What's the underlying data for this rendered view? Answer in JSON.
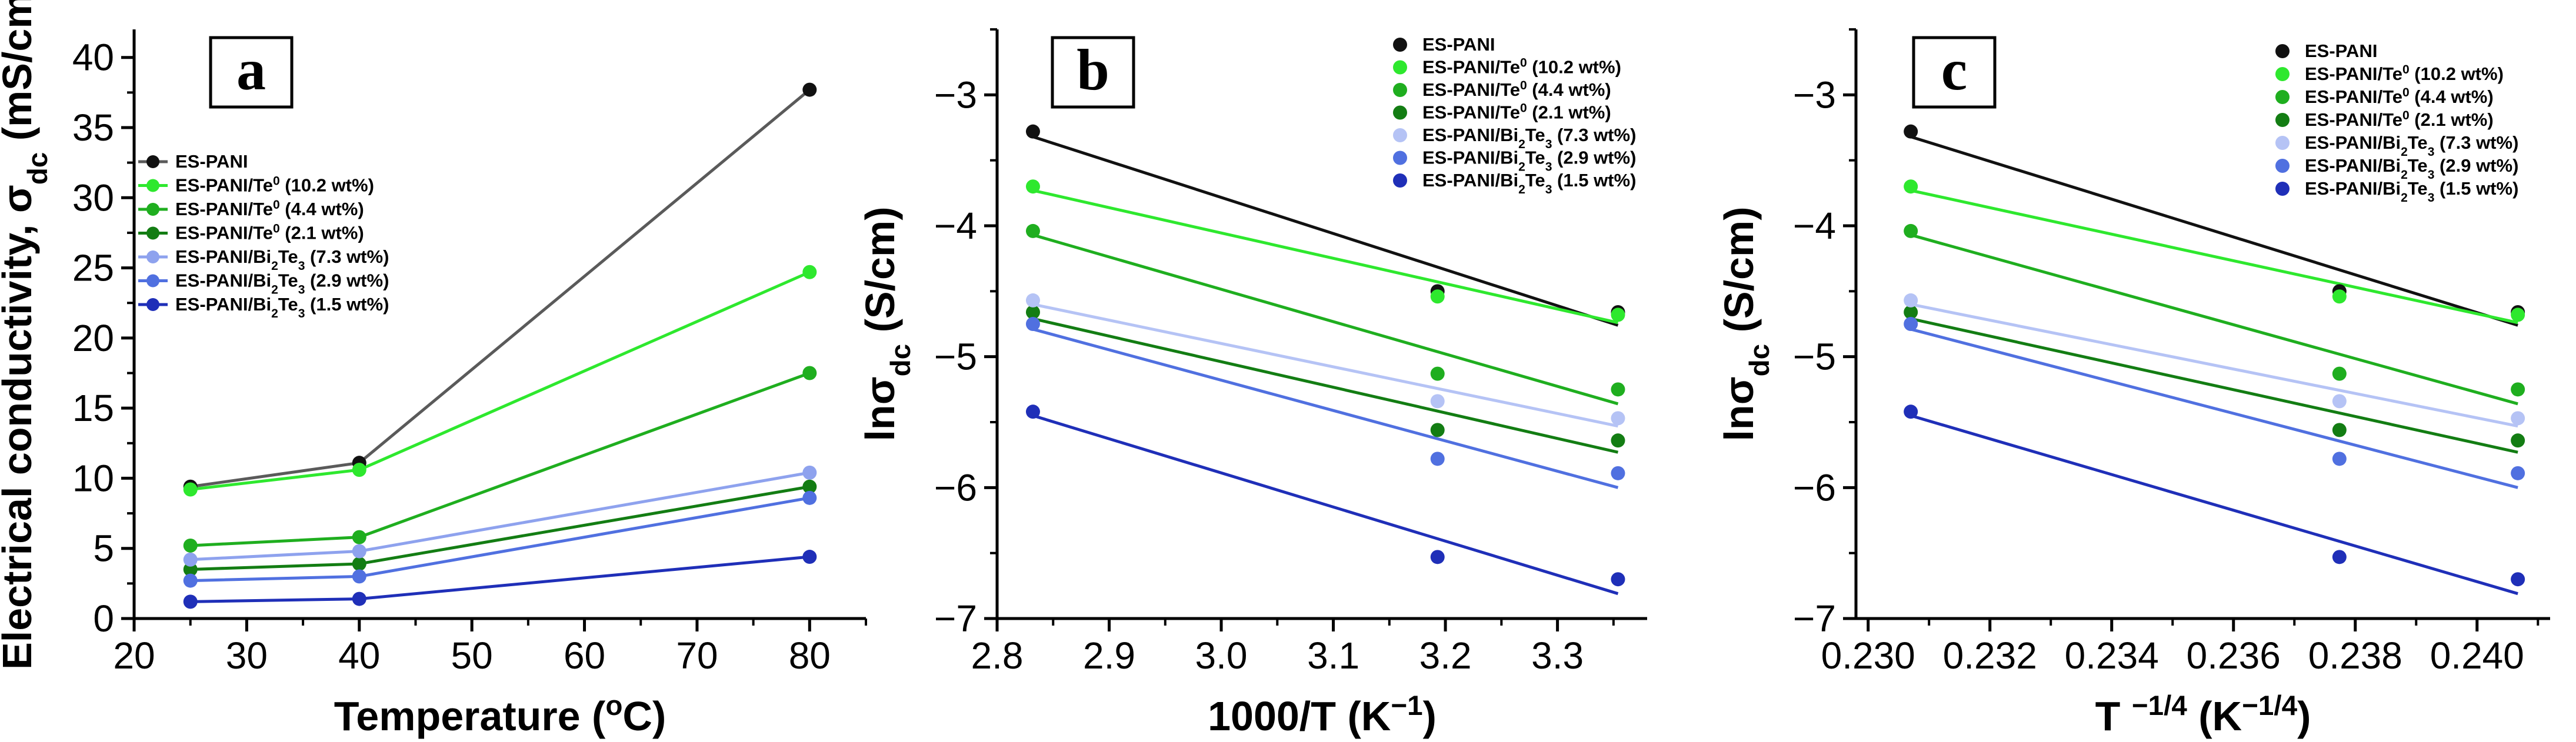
{
  "figure": {
    "panels": [
      {
        "id": "a",
        "label": "a",
        "title": "",
        "xlabel": "Temperature (oC)",
        "ylabel": "Electrical conductivity, σdc (mS/cm)",
        "x_ticks": [
          "20",
          "30",
          "40",
          "50",
          "60",
          "70",
          "80"
        ],
        "y_ticks": [
          "0",
          "5",
          "10",
          "15",
          "20",
          "25",
          "30",
          "35",
          "40"
        ]
      },
      {
        "id": "b",
        "label": "b",
        "title": "",
        "xlabel": "1000/T (K−1)",
        "ylabel": "lnσdc (S/cm)",
        "x_ticks": [
          "2.8",
          "2.9",
          "3.0",
          "3.1",
          "3.2",
          "3.3"
        ],
        "y_ticks": [
          "−3",
          "−4",
          "−5",
          "−6",
          "−7"
        ]
      },
      {
        "id": "c",
        "label": "c",
        "title": "",
        "xlabel": "T −1/4 (K−1/4)",
        "ylabel": "lnσdc (S/cm)",
        "x_ticks": [
          "0.230",
          "0.232",
          "0.234",
          "0.236",
          "0.238",
          "0.240"
        ],
        "y_ticks": [
          "−3",
          "−4",
          "−5",
          "−6",
          "−7"
        ]
      }
    ]
  },
  "chart_data": [
    {
      "type": "line",
      "panel": "a",
      "title": "",
      "xlabel": "Temperature (oC)",
      "ylabel": "Electrical conductivity, σdc (mS/cm)",
      "xlim": [
        20,
        85
      ],
      "ylim": [
        0,
        42
      ],
      "grid": false,
      "legend": "upper-left",
      "x": [
        25,
        40,
        80
      ],
      "series": [
        {
          "name": "ES-PANI",
          "legend_text": "ES-PANI",
          "color": "#5a5a5a",
          "marker_color": "#111111",
          "values": [
            9.4,
            11.1,
            37.7
          ]
        },
        {
          "name": "ES-PANI/Te0 (10.2 wt%)",
          "legend_text": "ES-PANI/Te0 (10.2 wt%)",
          "color": "#2ee82e",
          "marker_color": "#2ee82e",
          "values": [
            9.2,
            10.6,
            24.7
          ]
        },
        {
          "name": "ES-PANI/Te0 (4.4 wt%)",
          "legend_text": "ES-PANI/Te0 (4.4 wt%)",
          "color": "#1fae1f",
          "marker_color": "#1fae1f",
          "values": [
            5.2,
            5.8,
            17.5
          ]
        },
        {
          "name": "ES-PANI/Te0 (2.1 wt%)",
          "legend_text": "ES-PANI/Te0 (2.1 wt%)",
          "color": "#137d13",
          "marker_color": "#137d13",
          "values": [
            3.5,
            3.9,
            9.4
          ]
        },
        {
          "name": "ES-PANI/Bi2Te3 (7.3 wt%)",
          "legend_text": "ES-PANI/Bi2Te3 (7.3 wt%)",
          "color": "#8ea2ee",
          "marker_color": "#8ea2ee",
          "values": [
            4.2,
            4.8,
            10.4
          ]
        },
        {
          "name": "ES-PANI/Bi2Te3 (2.9 wt%)",
          "legend_text": "ES-PANI/Bi2Te3 (2.9 wt%)",
          "color": "#5070e0",
          "marker_color": "#5070e0",
          "values": [
            2.7,
            3.0,
            8.6
          ]
        },
        {
          "name": "ES-PANI/Bi2Te3 (1.5 wt%)",
          "legend_text": "ES-PANI/Bi2Te3 (1.5 wt%)",
          "color": "#1f2fb8",
          "marker_color": "#1f2fb8",
          "values": [
            1.2,
            1.4,
            4.4
          ]
        }
      ]
    },
    {
      "type": "scatter",
      "panel": "b",
      "title": "",
      "xlabel": "1000/T (K−1)",
      "ylabel": "lnσdc (S/cm)",
      "xlim": [
        2.8,
        3.38
      ],
      "ylim": [
        -7,
        -2.5
      ],
      "grid": false,
      "legend": "top-right",
      "fit_lines": true,
      "x": [
        2.832,
        3.193,
        3.354
      ],
      "series": [
        {
          "name": "ES-PANI",
          "legend_text": "ES-PANI",
          "color": "#111111",
          "values": [
            -3.28,
            -4.5,
            -4.66
          ],
          "fit": [
            -3.32,
            -4.76
          ]
        },
        {
          "name": "ES-PANI/Te0 (10.2 wt%)",
          "legend_text": "ES-PANI/Te0 (10.2 wt%)",
          "color": "#2ee82e",
          "values": [
            -3.7,
            -4.54,
            -4.68
          ],
          "fit": [
            -3.73,
            -4.74
          ]
        },
        {
          "name": "ES-PANI/Te0 (4.4 wt%)",
          "legend_text": "ES-PANI/Te0 (4.4 wt%)",
          "color": "#1fae1f",
          "values": [
            -4.04,
            -5.13,
            -5.25
          ],
          "fit": [
            -4.07,
            -5.36
          ]
        },
        {
          "name": "ES-PANI/Te0 (2.1 wt%)",
          "legend_text": "ES-PANI/Te0 (2.1 wt%)",
          "color": "#137d13",
          "values": [
            -4.66,
            -5.56,
            -5.64
          ],
          "fit": [
            -4.71,
            -5.73
          ]
        },
        {
          "name": "ES-PANI/Bi2Te3 (7.3 wt%)",
          "legend_text": "ES-PANI/Bi2Te3 (7.3 wt%)",
          "color": "#b5c3f5",
          "values": [
            -4.57,
            -5.34,
            -5.47
          ],
          "fit": [
            -4.6,
            -5.53
          ]
        },
        {
          "name": "ES-PANI/Bi2Te3 (2.9 wt%)",
          "legend_text": "ES-PANI/Bi2Te3 (2.9 wt%)",
          "color": "#5070e0",
          "values": [
            -4.75,
            -5.78,
            -5.89
          ],
          "fit": [
            -4.79,
            -6.0
          ]
        },
        {
          "name": "ES-PANI/Bi2Te3 (1.5 wt%)",
          "legend_text": "ES-PANI/Bi2Te3 (1.5 wt%)",
          "color": "#1f2fb8",
          "values": [
            -5.42,
            -6.53,
            -6.7
          ],
          "fit": [
            -5.45,
            -6.81
          ]
        }
      ]
    },
    {
      "type": "scatter",
      "panel": "c",
      "title": "",
      "xlabel": "T −1/4 (K−1/4)",
      "ylabel": "lnσdc (S/cm)",
      "xlim": [
        0.2298,
        0.2412
      ],
      "ylim": [
        -7,
        -2.5
      ],
      "grid": false,
      "legend": "top-right",
      "fit_lines": true,
      "x": [
        0.2307,
        0.23774,
        0.24067
      ],
      "series": [
        {
          "name": "ES-PANI",
          "legend_text": "ES-PANI",
          "color": "#111111",
          "values": [
            -3.28,
            -4.5,
            -4.66
          ],
          "fit": [
            -3.32,
            -4.76
          ]
        },
        {
          "name": "ES-PANI/Te0 (10.2 wt%)",
          "legend_text": "ES-PANI/Te0 (10.2 wt%)",
          "color": "#2ee82e",
          "values": [
            -3.7,
            -4.54,
            -4.68
          ],
          "fit": [
            -3.73,
            -4.74
          ]
        },
        {
          "name": "ES-PANI/Te0 (4.4 wt%)",
          "legend_text": "ES-PANI/Te0 (4.4 wt%)",
          "color": "#1fae1f",
          "values": [
            -4.04,
            -5.13,
            -5.25
          ],
          "fit": [
            -4.07,
            -5.36
          ]
        },
        {
          "name": "ES-PANI/Te0 (2.1 wt%)",
          "legend_text": "ES-PANI/Te0 (2.1 wt%)",
          "color": "#137d13",
          "values": [
            -4.66,
            -5.56,
            -5.64
          ],
          "fit": [
            -4.71,
            -5.73
          ]
        },
        {
          "name": "ES-PANI/Bi2Te3 (7.3 wt%)",
          "legend_text": "ES-PANI/Bi2Te3 (7.3 wt%)",
          "color": "#b5c3f5",
          "values": [
            -4.57,
            -5.34,
            -5.47
          ],
          "fit": [
            -4.6,
            -5.53
          ]
        },
        {
          "name": "ES-PANI/Bi2Te3 (2.9 wt%)",
          "legend_text": "ES-PANI/Bi2Te3 (2.9 wt%)",
          "color": "#5070e0",
          "values": [
            -4.75,
            -5.78,
            -5.89
          ],
          "fit": [
            -4.79,
            -6.0
          ]
        },
        {
          "name": "ES-PANI/Bi2Te3 (1.5 wt%)",
          "legend_text": "ES-PANI/Bi2Te3 (1.5 wt%)",
          "color": "#1f2fb8",
          "values": [
            -5.42,
            -6.53,
            -6.7
          ],
          "fit": [
            -5.45,
            -6.81
          ]
        }
      ]
    }
  ]
}
